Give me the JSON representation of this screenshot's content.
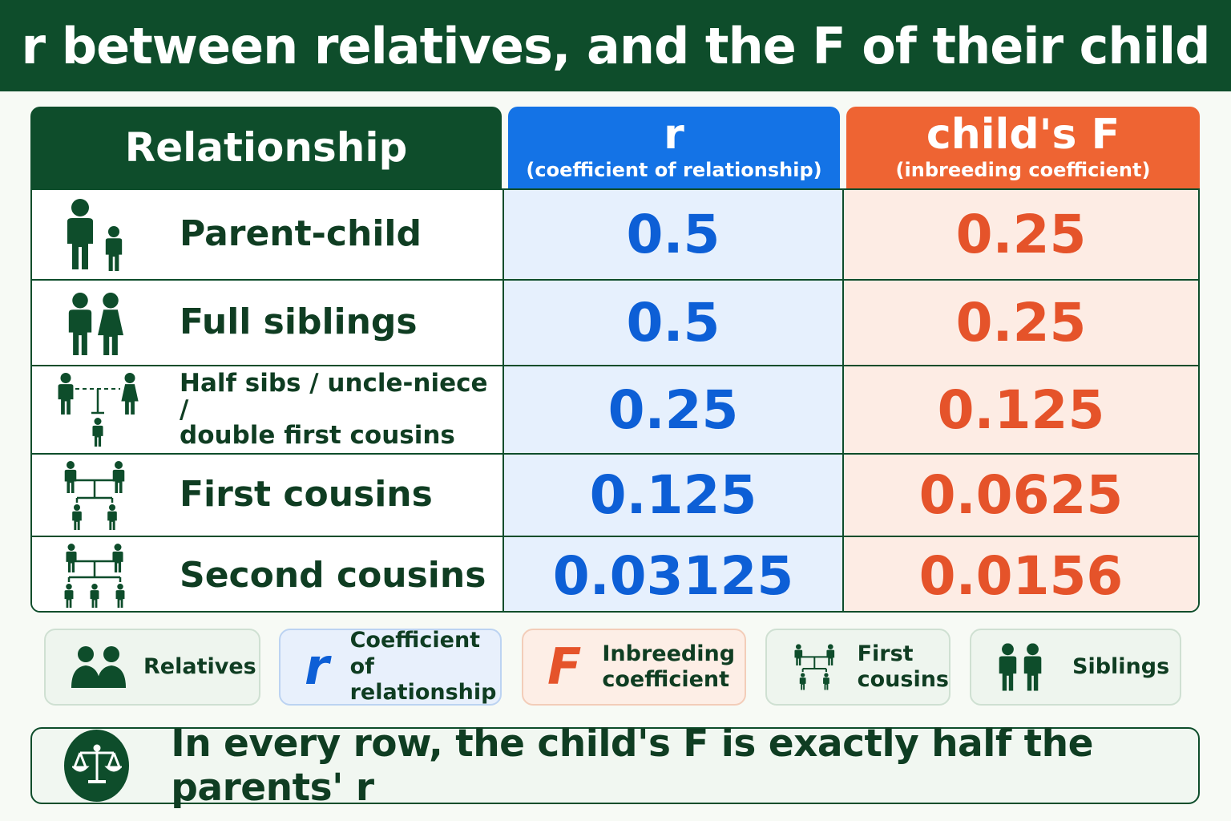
{
  "title": "r between relatives, and the F of their child",
  "headers": {
    "relationship": "Relationship",
    "r_main": "r",
    "r_sub": "(coefficient of relationship)",
    "f_main": "child's F",
    "f_sub": "(inbreeding coefficient)"
  },
  "rows": [
    {
      "label": "Parent-child",
      "icon": "parent-child-icon",
      "r": "0.5",
      "f": "0.25"
    },
    {
      "label": "Full siblings",
      "icon": "full-siblings-icon",
      "r": "0.5",
      "f": "0.25"
    },
    {
      "label_line1": "Half sibs / uncle-niece /",
      "label_line2": "double first cousins",
      "icon": "half-sibs-pedigree-icon",
      "r": "0.25",
      "f": "0.125"
    },
    {
      "label": "First cousins",
      "icon": "first-cousins-pedigree-icon",
      "r": "0.125",
      "f": "0.0625"
    },
    {
      "label": "Second cousins",
      "icon": "second-cousins-pedigree-icon",
      "r": "0.03125",
      "f": "0.0156"
    }
  ],
  "legend": {
    "relatives": "Relatives",
    "r_symbol": "r",
    "r_line1": "Coefficient of",
    "r_line2": "relationship",
    "f_symbol": "F",
    "f_line1": "Inbreeding",
    "f_line2": "coefficient",
    "cousins_line1": "First",
    "cousins_line2": "cousins",
    "siblings": "Siblings"
  },
  "note": "In every row, the child's F is exactly half the parents' r",
  "colors": {
    "green": "#0e4d2b",
    "blue": "#1473e6",
    "orange": "#ee6433"
  }
}
